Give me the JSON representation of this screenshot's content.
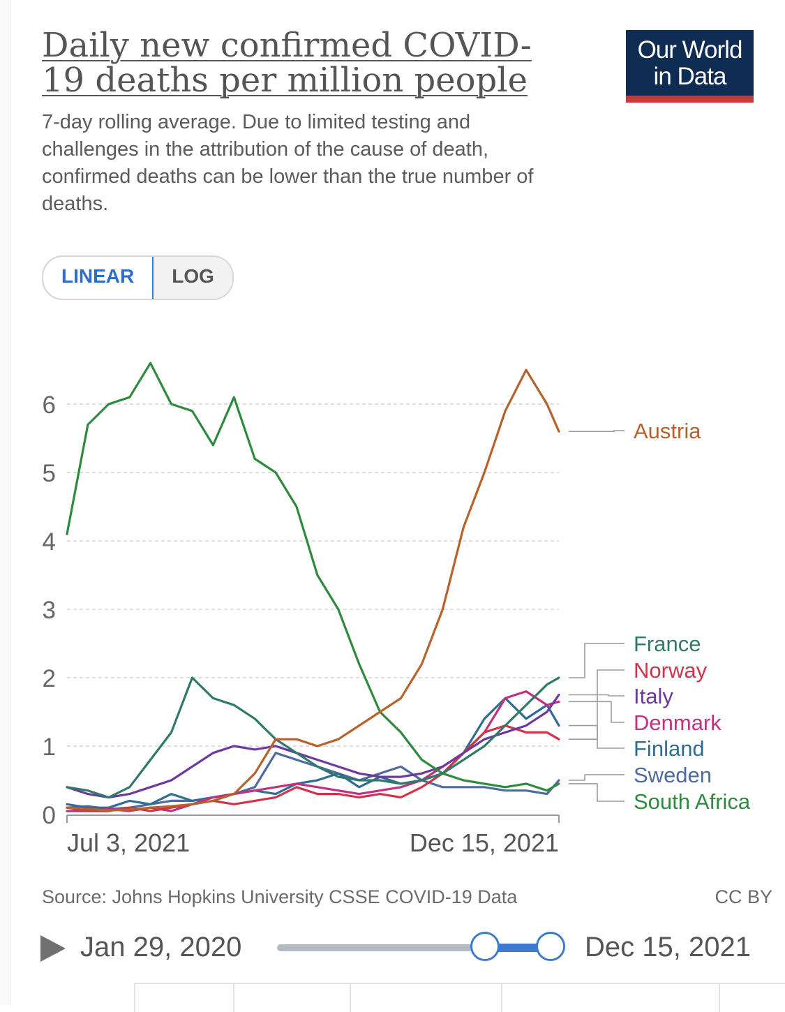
{
  "header": {
    "title": "Daily new confirmed COVID-19 deaths per million people",
    "subtitle": "7-day rolling average. Due to limited testing and challenges in the attribution of the cause of death, confirmed deaths can be lower than the true number of deaths.",
    "logo_line1": "Our World",
    "logo_line2": "in Data"
  },
  "scale_toggle": {
    "linear": "LINEAR",
    "log": "LOG",
    "selected": "LINEAR"
  },
  "colors": {
    "Austria": "#b8622a",
    "France": "#2f7a68",
    "Norway": "#d0344a",
    "Italy": "#6b3a9c",
    "Denmark": "#c2307e",
    "Finland": "#2f6d92",
    "Sweden": "#4d6ba0",
    "South Africa": "#2e8b3e",
    "grid": "#dddddd",
    "axis_text": "#666666",
    "accent": "#3c7bd0"
  },
  "chart_data": {
    "type": "line",
    "title": "Daily new confirmed COVID-19 deaths per million people",
    "xlabel": "",
    "ylabel": "",
    "x_start": "Jul 3, 2021",
    "x_end": "Dec 15, 2021",
    "x_tick_labels": [
      "Jul 3, 2021",
      "Dec 15, 2021"
    ],
    "y_ticks": [
      0,
      1,
      2,
      3,
      4,
      5,
      6
    ],
    "ylim": [
      0,
      7
    ],
    "grid": "horizontal dashed",
    "x_days": [
      0,
      7,
      14,
      21,
      28,
      35,
      42,
      49,
      56,
      63,
      70,
      77,
      84,
      91,
      98,
      105,
      112,
      119,
      126,
      133,
      140,
      147,
      154,
      161,
      165
    ],
    "series": [
      {
        "name": "South Africa",
        "values": [
          4.1,
          5.7,
          6.0,
          6.1,
          6.6,
          6.0,
          5.9,
          5.4,
          6.1,
          5.2,
          5.0,
          4.5,
          3.5,
          3.0,
          2.2,
          1.5,
          1.2,
          0.8,
          0.6,
          0.5,
          0.45,
          0.4,
          0.45,
          0.35,
          0.45
        ]
      },
      {
        "name": "Austria",
        "values": [
          0.1,
          0.08,
          0.06,
          0.07,
          0.1,
          0.12,
          0.15,
          0.2,
          0.3,
          0.6,
          1.1,
          1.1,
          1.0,
          1.1,
          1.3,
          1.5,
          1.7,
          2.2,
          3.0,
          4.2,
          5.0,
          5.9,
          6.5,
          6.0,
          5.6
        ]
      },
      {
        "name": "France",
        "values": [
          0.4,
          0.35,
          0.25,
          0.4,
          0.8,
          1.2,
          2.0,
          1.7,
          1.6,
          1.4,
          1.1,
          0.9,
          0.7,
          0.55,
          0.5,
          0.5,
          0.45,
          0.5,
          0.6,
          0.8,
          1.0,
          1.3,
          1.6,
          1.9,
          2.0
        ]
      },
      {
        "name": "Norway",
        "values": [
          0.1,
          0.05,
          0.05,
          0.1,
          0.05,
          0.1,
          0.15,
          0.2,
          0.15,
          0.2,
          0.25,
          0.4,
          0.3,
          0.3,
          0.25,
          0.3,
          0.25,
          0.4,
          0.6,
          0.9,
          1.2,
          1.3,
          1.2,
          1.2,
          1.1
        ]
      },
      {
        "name": "Italy",
        "values": [
          0.4,
          0.3,
          0.25,
          0.3,
          0.4,
          0.5,
          0.7,
          0.9,
          1.0,
          0.95,
          1.0,
          0.9,
          0.8,
          0.7,
          0.6,
          0.55,
          0.55,
          0.6,
          0.7,
          0.9,
          1.1,
          1.2,
          1.3,
          1.5,
          1.75
        ]
      },
      {
        "name": "Denmark",
        "values": [
          0.05,
          0.05,
          0.08,
          0.05,
          0.1,
          0.05,
          0.15,
          0.25,
          0.3,
          0.35,
          0.4,
          0.45,
          0.4,
          0.35,
          0.3,
          0.35,
          0.4,
          0.5,
          0.7,
          0.9,
          1.2,
          1.7,
          1.8,
          1.6,
          1.65
        ]
      },
      {
        "name": "Finland",
        "values": [
          0.15,
          0.1,
          0.1,
          0.2,
          0.15,
          0.3,
          0.2,
          0.25,
          0.3,
          0.35,
          0.3,
          0.45,
          0.5,
          0.6,
          0.4,
          0.55,
          0.45,
          0.5,
          0.6,
          0.9,
          1.4,
          1.7,
          1.4,
          1.6,
          1.3
        ]
      },
      {
        "name": "Sweden",
        "values": [
          0.1,
          0.12,
          0.08,
          0.1,
          0.15,
          0.2,
          0.2,
          0.25,
          0.3,
          0.4,
          0.9,
          0.8,
          0.7,
          0.6,
          0.5,
          0.6,
          0.7,
          0.5,
          0.4,
          0.4,
          0.4,
          0.35,
          0.35,
          0.3,
          0.5
        ]
      }
    ],
    "label_order": [
      "Austria",
      "France",
      "Norway",
      "Italy",
      "Denmark",
      "Finland",
      "Sweden",
      "South Africa"
    ]
  },
  "footer": {
    "source": "Source: Johns Hopkins University CSSE COVID-19 Data",
    "license": "CC BY"
  },
  "timeline": {
    "start_label": "Jan 29, 2020",
    "end_label": "Dec 15, 2021"
  }
}
